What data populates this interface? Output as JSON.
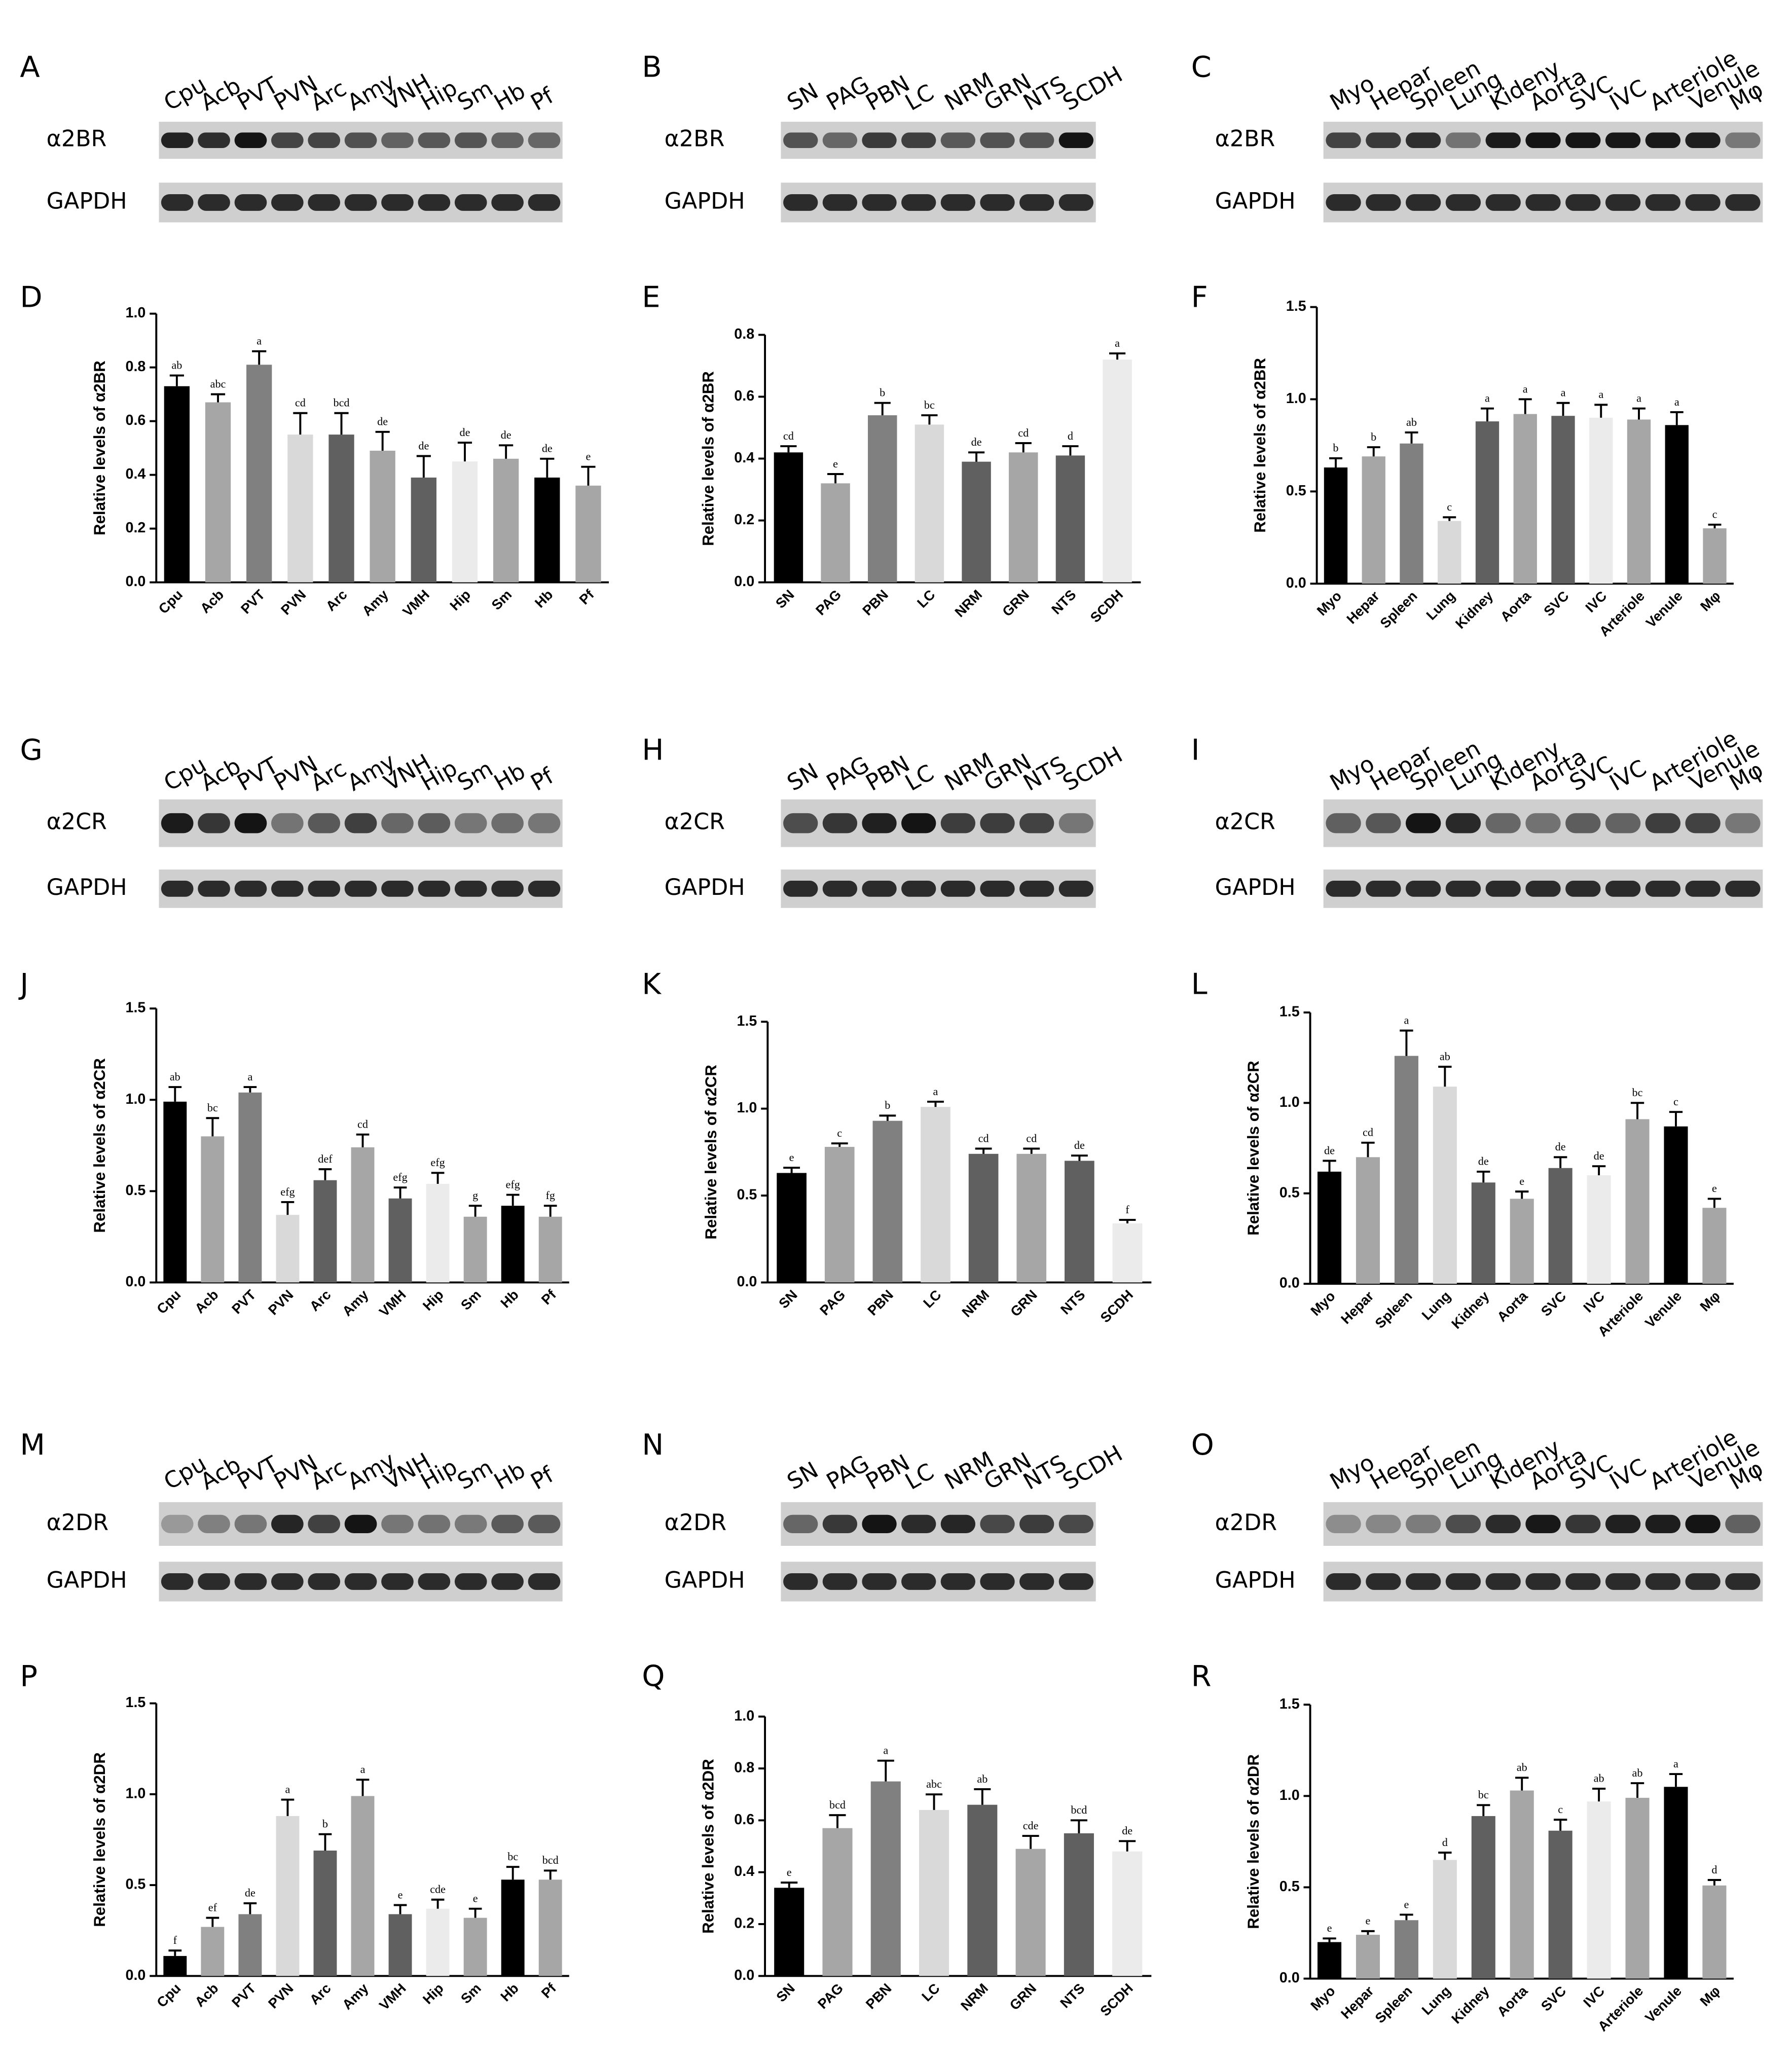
{
  "blots": [
    {
      "label": "A",
      "lanes": [
        "Cpu",
        "Acb",
        "PVT",
        "PVN",
        "Arc",
        "Amy",
        "VNH",
        "Hip",
        "Sm",
        "Hb",
        "Pf"
      ],
      "rows": [
        "α2BR",
        "GAPDH"
      ]
    },
    {
      "label": "B",
      "lanes": [
        "SN",
        "PAG",
        "PBN",
        "LC",
        "NRM",
        "GRN",
        "NTS",
        "SCDH"
      ],
      "rows": [
        "α2BR",
        "GAPDH"
      ]
    },
    {
      "label": "C",
      "lanes": [
        "Myo",
        "Hepar",
        "Spleen",
        "Lung",
        "Kideny",
        "Aorta",
        "SVC",
        "IVC",
        "Arteriole",
        "Venule",
        "Mφ"
      ],
      "rows": [
        "α2BR",
        "GAPDH"
      ]
    },
    {
      "label": "G",
      "lanes": [
        "Cpu",
        "Acb",
        "PVT",
        "PVN",
        "Arc",
        "Amy",
        "VNH",
        "Hip",
        "Sm",
        "Hb",
        "Pf"
      ],
      "rows": [
        "α2CR",
        "GAPDH"
      ]
    },
    {
      "label": "H",
      "lanes": [
        "SN",
        "PAG",
        "PBN",
        "LC",
        "NRM",
        "GRN",
        "NTS",
        "SCDH"
      ],
      "rows": [
        "α2CR",
        "GAPDH"
      ]
    },
    {
      "label": "I",
      "lanes": [
        "Myo",
        "Hepar",
        "Spleen",
        "Lung",
        "Kideny",
        "Aorta",
        "SVC",
        "IVC",
        "Arteriole",
        "Venule",
        "Mφ"
      ],
      "rows": [
        "α2CR",
        "GAPDH"
      ]
    },
    {
      "label": "M",
      "lanes": [
        "Cpu",
        "Acb",
        "PVT",
        "PVN",
        "Arc",
        "Amy",
        "VNH",
        "Hip",
        "Sm",
        "Hb",
        "Pf"
      ],
      "rows": [
        "α2DR",
        "GAPDH"
      ]
    },
    {
      "label": "N",
      "lanes": [
        "SN",
        "PAG",
        "PBN",
        "LC",
        "NRM",
        "GRN",
        "NTS",
        "SCDH"
      ],
      "rows": [
        "α2DR",
        "GAPDH"
      ]
    },
    {
      "label": "O",
      "lanes": [
        "Myo",
        "Hepar",
        "Spleen",
        "Lung",
        "Kideny",
        "Aorta",
        "SVC",
        "IVC",
        "Arteriole",
        "Venule",
        "Mφ"
      ],
      "rows": [
        "α2DR",
        "GAPDH"
      ]
    }
  ],
  "chart_data": [
    {
      "type": "bar",
      "label": "D",
      "ylabel": "Relative levels of α2BR",
      "categories": [
        "Cpu",
        "Acb",
        "PVT",
        "PVN",
        "Arc",
        "Amy",
        "VMH",
        "Hip",
        "Sm",
        "Hb",
        "Pf"
      ],
      "values": [
        0.73,
        0.67,
        0.81,
        0.55,
        0.55,
        0.49,
        0.39,
        0.45,
        0.46,
        0.39,
        0.36
      ],
      "errors": [
        0.04,
        0.03,
        0.05,
        0.08,
        0.08,
        0.07,
        0.08,
        0.07,
        0.05,
        0.07,
        0.07
      ],
      "annotations": [
        "ab",
        "abc",
        "a",
        "cd",
        "bcd",
        "de",
        "de",
        "de",
        "de",
        "de",
        "e"
      ],
      "colors": [
        "#000000",
        "#a6a6a6",
        "#808080",
        "#d9d9d9",
        "#606060",
        "#a6a6a6",
        "#606060",
        "#ebebeb",
        "#a6a6a6",
        "#000000",
        "#a6a6a6"
      ],
      "ylim": [
        0,
        1
      ],
      "yticks": [
        {
          "value": 0,
          "label": "0.0"
        },
        0.2,
        0.4,
        0.6,
        0.8,
        {
          "value": 1,
          "label": "1.0"
        }
      ]
    },
    {
      "type": "bar",
      "label": "E",
      "ylabel": "Relative levels of α2BR",
      "categories": [
        "SN",
        "PAG",
        "PBN",
        "LC",
        "NRM",
        "GRN",
        "NTS",
        "SCDH"
      ],
      "values": [
        0.42,
        0.32,
        0.54,
        0.51,
        0.39,
        0.42,
        0.41,
        0.72
      ],
      "errors": [
        0.02,
        0.03,
        0.04,
        0.03,
        0.03,
        0.03,
        0.03,
        0.02
      ],
      "annotations": [
        "cd",
        "e",
        "b",
        "bc",
        "de",
        "cd",
        "d",
        "a"
      ],
      "colors": [
        "#000000",
        "#a6a6a6",
        "#808080",
        "#d9d9d9",
        "#606060",
        "#a6a6a6",
        "#606060",
        "#ebebeb"
      ],
      "ylim": [
        0,
        0.8
      ],
      "yticks": [
        {
          "value": 0,
          "label": "0.0"
        },
        0.2,
        0.4,
        0.6,
        0.8
      ]
    },
    {
      "type": "bar",
      "label": "F",
      "ylabel": "Relative levels of α2BR",
      "categories": [
        "Myo",
        "Hepar",
        "Spleen",
        "Lung",
        "Kidney",
        "Aorta",
        "SVC",
        "IVC",
        "Arteriole",
        "Venule",
        "Mφ"
      ],
      "values": [
        0.63,
        0.69,
        0.76,
        0.34,
        0.88,
        0.92,
        0.91,
        0.9,
        0.89,
        0.86,
        0.3
      ],
      "errors": [
        0.05,
        0.05,
        0.06,
        0.02,
        0.07,
        0.08,
        0.07,
        0.07,
        0.06,
        0.07,
        0.02
      ],
      "annotations": [
        "b",
        "b",
        "ab",
        "c",
        "a",
        "a",
        "a",
        "a",
        "a",
        "a",
        "c"
      ],
      "colors": [
        "#000000",
        "#a6a6a6",
        "#808080",
        "#d9d9d9",
        "#606060",
        "#a6a6a6",
        "#606060",
        "#ebebeb",
        "#a6a6a6",
        "#000000",
        "#a6a6a6"
      ],
      "ylim": [
        0,
        1.5
      ],
      "yticks": [
        {
          "value": 0,
          "label": "0.0"
        },
        0.5,
        {
          "value": 1,
          "label": "1.0"
        },
        1.5
      ]
    },
    {
      "type": "bar",
      "label": "J",
      "ylabel": "Relative levels of α2CR",
      "categories": [
        "Cpu",
        "Acb",
        "PVT",
        "PVN",
        "Arc",
        "Amy",
        "VMH",
        "Hip",
        "Sm",
        "Hb",
        "Pf"
      ],
      "values": [
        0.99,
        0.8,
        1.04,
        0.37,
        0.56,
        0.74,
        0.46,
        0.54,
        0.36,
        0.42,
        0.36
      ],
      "errors": [
        0.08,
        0.1,
        0.03,
        0.07,
        0.06,
        0.07,
        0.06,
        0.06,
        0.06,
        0.06,
        0.06
      ],
      "annotations": [
        "ab",
        "bc",
        "a",
        "efg",
        "def",
        "cd",
        "efg",
        "efg",
        "g",
        "efg",
        "fg"
      ],
      "colors": [
        "#000000",
        "#a6a6a6",
        "#808080",
        "#d9d9d9",
        "#606060",
        "#a6a6a6",
        "#606060",
        "#ebebeb",
        "#a6a6a6",
        "#000000",
        "#a6a6a6"
      ],
      "ylim": [
        0,
        1.5
      ],
      "yticks": [
        {
          "value": 0,
          "label": "0.0"
        },
        0.5,
        {
          "value": 1,
          "label": "1.0"
        },
        1.5
      ]
    },
    {
      "type": "bar",
      "label": "K",
      "ylabel": "Relative levels of α2CR",
      "categories": [
        "SN",
        "PAG",
        "PBN",
        "LC",
        "NRM",
        "GRN",
        "NTS",
        "SCDH"
      ],
      "values": [
        0.63,
        0.78,
        0.93,
        1.01,
        0.74,
        0.74,
        0.7,
        0.34
      ],
      "errors": [
        0.03,
        0.02,
        0.03,
        0.03,
        0.03,
        0.03,
        0.03,
        0.02
      ],
      "annotations": [
        "e",
        "c",
        "b",
        "a",
        "cd",
        "cd",
        "de",
        "f"
      ],
      "colors": [
        "#000000",
        "#a6a6a6",
        "#808080",
        "#d9d9d9",
        "#606060",
        "#a6a6a6",
        "#606060",
        "#ebebeb"
      ],
      "ylim": [
        0,
        1.5
      ],
      "yticks": [
        {
          "value": 0,
          "label": "0.0"
        },
        0.5,
        {
          "value": 1,
          "label": "1.0"
        },
        1.5
      ]
    },
    {
      "type": "bar",
      "label": "L",
      "ylabel": "Relative levels of α2CR",
      "categories": [
        "Myo",
        "Hepar",
        "Spleen",
        "Lung",
        "Kidney",
        "Aorta",
        "SVC",
        "IVC",
        "Arteriole",
        "Venule",
        "Mφ"
      ],
      "values": [
        0.62,
        0.7,
        1.26,
        1.09,
        0.56,
        0.47,
        0.64,
        0.6,
        0.91,
        0.87,
        0.42
      ],
      "errors": [
        0.06,
        0.08,
        0.14,
        0.11,
        0.06,
        0.04,
        0.06,
        0.05,
        0.09,
        0.08,
        0.05
      ],
      "annotations": [
        "de",
        "cd",
        "a",
        "ab",
        "de",
        "e",
        "de",
        "de",
        "bc",
        "c",
        "e"
      ],
      "colors": [
        "#000000",
        "#a6a6a6",
        "#808080",
        "#d9d9d9",
        "#606060",
        "#a6a6a6",
        "#606060",
        "#ebebeb",
        "#a6a6a6",
        "#000000",
        "#a6a6a6"
      ],
      "ylim": [
        0,
        1.5
      ],
      "yticks": [
        {
          "value": 0,
          "label": "0.0"
        },
        0.5,
        {
          "value": 1,
          "label": "1.0"
        },
        1.5
      ]
    },
    {
      "type": "bar",
      "label": "P",
      "ylabel": "Relative levels of α2DR",
      "categories": [
        "Cpu",
        "Acb",
        "PVT",
        "PVN",
        "Arc",
        "Amy",
        "VMH",
        "Hip",
        "Sm",
        "Hb",
        "Pf"
      ],
      "values": [
        0.11,
        0.27,
        0.34,
        0.88,
        0.69,
        0.99,
        0.34,
        0.37,
        0.32,
        0.53,
        0.53
      ],
      "errors": [
        0.03,
        0.05,
        0.06,
        0.09,
        0.09,
        0.09,
        0.05,
        0.05,
        0.05,
        0.07,
        0.05
      ],
      "annotations": [
        "f",
        "ef",
        "de",
        "a",
        "b",
        "a",
        "e",
        "cde",
        "e",
        "bc",
        "bcd"
      ],
      "colors": [
        "#000000",
        "#a6a6a6",
        "#808080",
        "#d9d9d9",
        "#606060",
        "#a6a6a6",
        "#606060",
        "#ebebeb",
        "#a6a6a6",
        "#000000",
        "#a6a6a6"
      ],
      "ylim": [
        0,
        1.5
      ],
      "yticks": [
        {
          "value": 0,
          "label": "0.0"
        },
        0.5,
        {
          "value": 1,
          "label": "1.0"
        },
        1.5
      ]
    },
    {
      "type": "bar",
      "label": "Q",
      "ylabel": "Relative levels of α2DR",
      "categories": [
        "SN",
        "PAG",
        "PBN",
        "LC",
        "NRM",
        "GRN",
        "NTS",
        "SCDH"
      ],
      "values": [
        0.34,
        0.57,
        0.75,
        0.64,
        0.66,
        0.49,
        0.55,
        0.48
      ],
      "errors": [
        0.02,
        0.05,
        0.08,
        0.06,
        0.06,
        0.05,
        0.05,
        0.04
      ],
      "annotations": [
        "e",
        "bcd",
        "a",
        "abc",
        "ab",
        "cde",
        "bcd",
        "de"
      ],
      "colors": [
        "#000000",
        "#a6a6a6",
        "#808080",
        "#d9d9d9",
        "#606060",
        "#a6a6a6",
        "#606060",
        "#ebebeb"
      ],
      "ylim": [
        0,
        1
      ],
      "yticks": [
        {
          "value": 0,
          "label": "0.0"
        },
        0.2,
        0.4,
        0.6,
        0.8,
        {
          "value": 1,
          "label": "1.0"
        }
      ]
    },
    {
      "type": "bar",
      "label": "R",
      "ylabel": "Relative levels of α2DR",
      "categories": [
        "Myo",
        "Hepar",
        "Spleen",
        "Lung",
        "Kidney",
        "Aorta",
        "SVC",
        "IVC",
        "Arteriole",
        "Venule",
        "Mφ"
      ],
      "values": [
        0.2,
        0.24,
        0.32,
        0.65,
        0.89,
        1.03,
        0.81,
        0.97,
        0.99,
        1.05,
        0.51
      ],
      "errors": [
        0.02,
        0.02,
        0.03,
        0.04,
        0.06,
        0.07,
        0.06,
        0.07,
        0.08,
        0.07,
        0.03
      ],
      "annotations": [
        "e",
        "e",
        "e",
        "d",
        "bc",
        "ab",
        "c",
        "ab",
        "ab",
        "a",
        "d"
      ],
      "colors": [
        "#000000",
        "#a6a6a6",
        "#808080",
        "#d9d9d9",
        "#606060",
        "#a6a6a6",
        "#606060",
        "#ebebeb",
        "#a6a6a6",
        "#000000",
        "#a6a6a6"
      ],
      "ylim": [
        0,
        1.5
      ],
      "yticks": [
        {
          "value": 0,
          "label": "0.0"
        },
        0.5,
        {
          "value": 1,
          "label": "1.0"
        },
        1.5
      ]
    }
  ]
}
